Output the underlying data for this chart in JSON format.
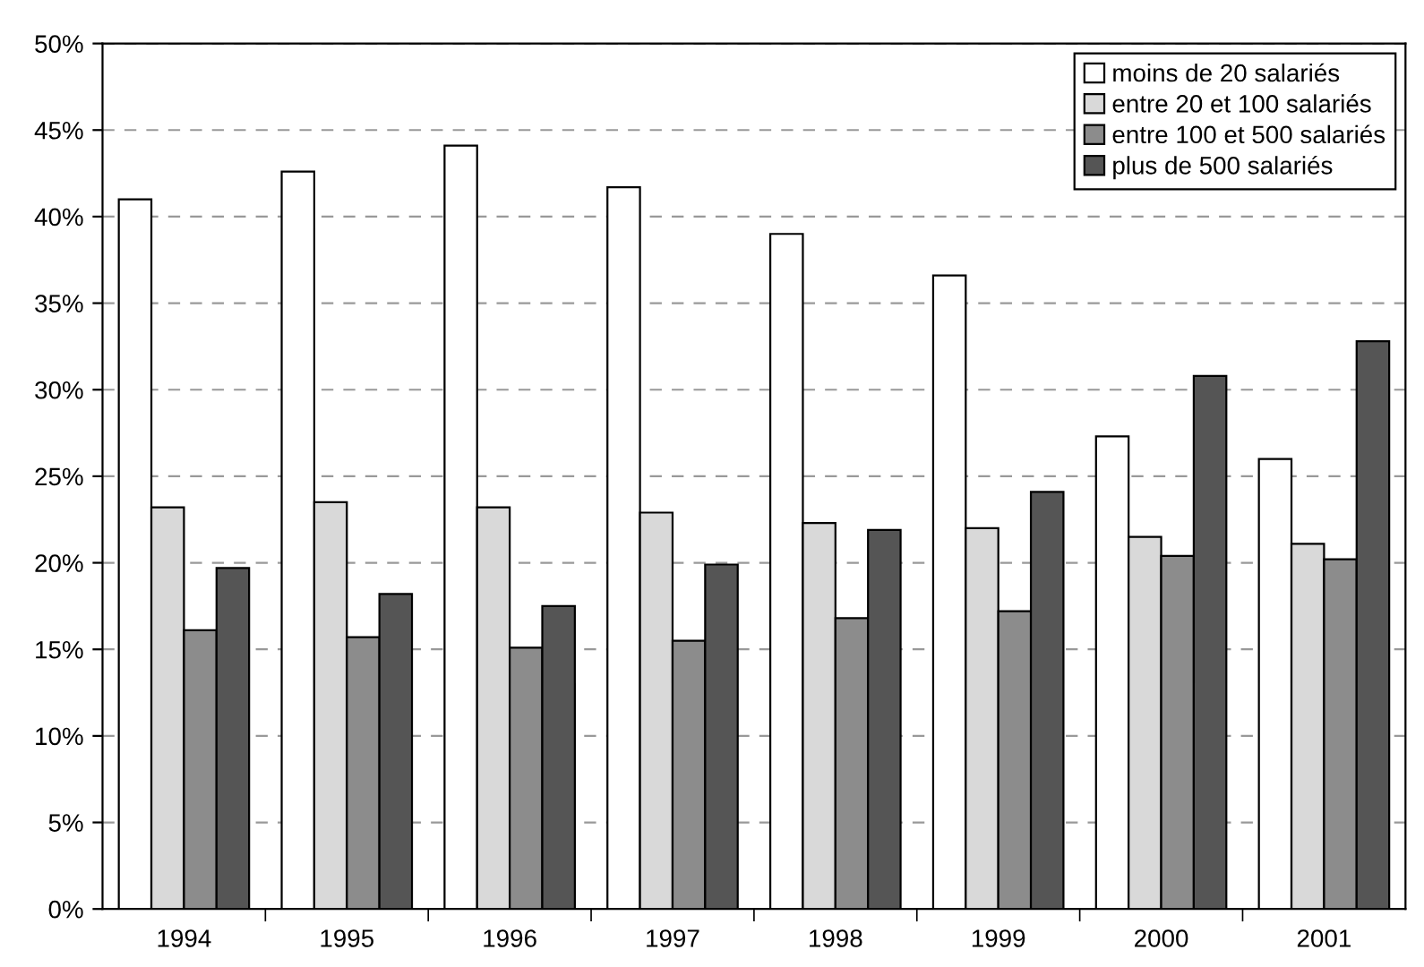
{
  "chart_data": {
    "type": "bar",
    "categories": [
      "1994",
      "1995",
      "1996",
      "1997",
      "1998",
      "1999",
      "2000",
      "2001"
    ],
    "series": [
      {
        "name": "moins de 20 salariés",
        "color": "#ffffff",
        "values": [
          41.0,
          42.6,
          44.1,
          41.7,
          39.0,
          36.6,
          27.3,
          26.0
        ]
      },
      {
        "name": "entre 20 et 100 salariés",
        "color": "#d9d9d9",
        "values": [
          23.2,
          23.5,
          23.2,
          22.9,
          22.3,
          22.0,
          21.5,
          21.1
        ]
      },
      {
        "name": "entre 100 et 500 salariés",
        "color": "#8c8c8c",
        "values": [
          16.1,
          15.7,
          15.1,
          15.5,
          16.8,
          17.2,
          20.4,
          20.2
        ]
      },
      {
        "name": "plus de 500 salariés",
        "color": "#555555",
        "values": [
          19.7,
          18.2,
          17.5,
          19.9,
          21.9,
          24.1,
          30.8,
          32.8
        ]
      }
    ],
    "ylim": [
      0,
      50
    ],
    "yticks": [
      {
        "value": 0,
        "label": "0%"
      },
      {
        "value": 5,
        "label": "5%"
      },
      {
        "value": 10,
        "label": "10%"
      },
      {
        "value": 15,
        "label": "15%"
      },
      {
        "value": 20,
        "label": "20%"
      },
      {
        "value": 25,
        "label": "25%"
      },
      {
        "value": 30,
        "label": "30%"
      },
      {
        "value": 35,
        "label": "35%"
      },
      {
        "value": 40,
        "label": "40%"
      },
      {
        "value": 45,
        "label": "45%"
      },
      {
        "value": 50,
        "label": "50%"
      }
    ],
    "grid": "y",
    "legend": "top right",
    "line_style": "dashed"
  }
}
